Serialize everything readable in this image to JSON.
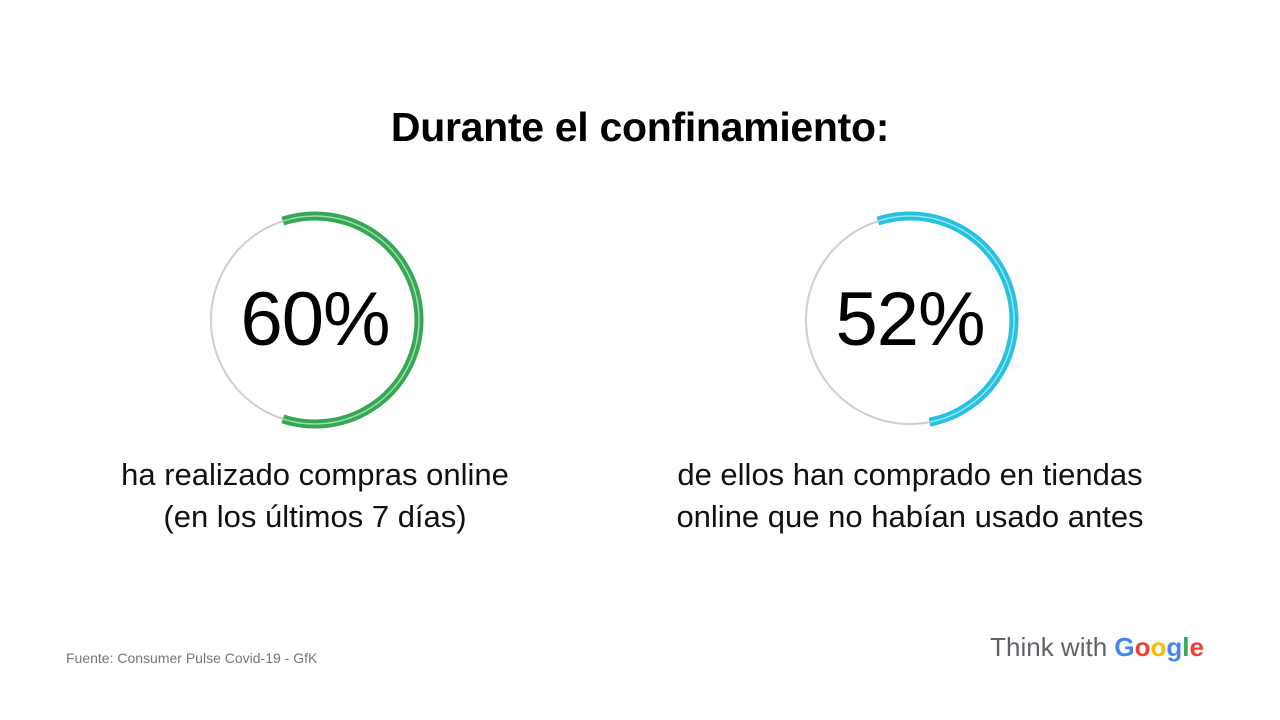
{
  "title": "Durante el confinamiento:",
  "chart_data": [
    {
      "type": "pie",
      "value": 60,
      "label": "60%",
      "caption_lines": [
        "ha realizado compras online",
        "(en los últimos 7 días)"
      ],
      "color": "#34a853",
      "track_color": "#cfcfcf"
    },
    {
      "type": "pie",
      "value": 52,
      "label": "52%",
      "caption_lines": [
        "de ellos han comprado en tiendas",
        "online que no habían usado antes"
      ],
      "color": "#24c1e0",
      "track_color": "#cfcfcf"
    }
  ],
  "source": "Fuente: Consumer Pulse Covid-19 - GfK",
  "brand": {
    "prefix": "Think with ",
    "word": "Google",
    "colors": [
      "#4285f4",
      "#ea4335",
      "#fbbc05",
      "#4285f4",
      "#34a853",
      "#ea4335"
    ]
  }
}
